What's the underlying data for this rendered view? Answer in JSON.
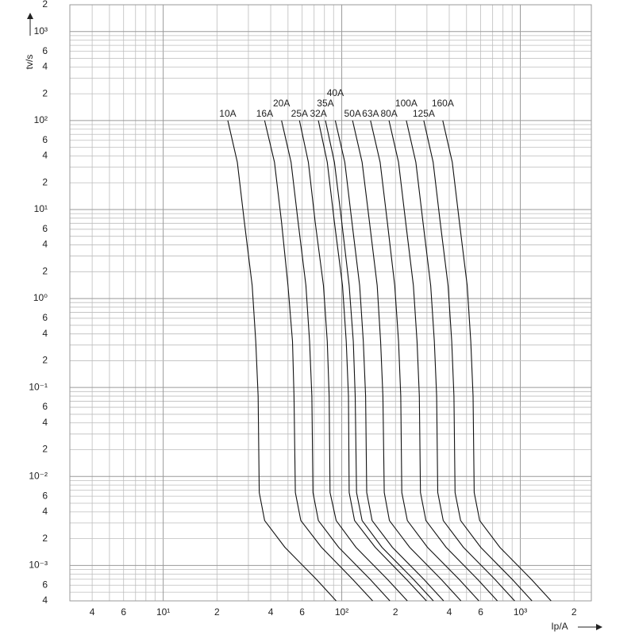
{
  "chart_data": {
    "type": "line",
    "x_label": "Ip/A",
    "y_label": "tv/s",
    "xlog": true,
    "ylog": true,
    "grid": true,
    "xlim": [
      3,
      2500
    ],
    "ylim": [
      0.0004,
      2000
    ],
    "xticks": [
      4,
      6,
      {
        "value": 10,
        "label": "10¹"
      },
      {
        "value": 20,
        "label": "2"
      },
      {
        "value": 40,
        "label": "4"
      },
      {
        "value": 60,
        "label": "6"
      },
      {
        "value": 100,
        "label": "10²"
      },
      {
        "value": 200,
        "label": "2"
      },
      {
        "value": 400,
        "label": "4"
      },
      {
        "value": 600,
        "label": "6"
      },
      {
        "value": 1000,
        "label": "10³"
      },
      {
        "value": 2000,
        "label": "2"
      }
    ],
    "yticks": [
      {
        "value": 2000,
        "label": "2"
      },
      {
        "value": 1000,
        "label": "10³"
      },
      {
        "value": 600,
        "label": "6"
      },
      {
        "value": 400,
        "label": "4"
      },
      {
        "value": 200,
        "label": "2"
      },
      {
        "value": 100,
        "label": "10²"
      },
      {
        "value": 60,
        "label": "6"
      },
      {
        "value": 40,
        "label": "4"
      },
      {
        "value": 20,
        "label": "2"
      },
      {
        "value": 10,
        "label": "10¹"
      },
      6,
      4,
      2,
      {
        "value": 1,
        "label": "10⁰"
      },
      {
        "value": 0.6,
        "label": "6"
      },
      {
        "value": 0.4,
        "label": "4"
      },
      {
        "value": 0.2,
        "label": "2"
      },
      {
        "value": 0.1,
        "label": "10⁻¹"
      },
      {
        "value": 0.06,
        "label": "6"
      },
      {
        "value": 0.04,
        "label": "4"
      },
      {
        "value": 0.02,
        "label": "2"
      },
      {
        "value": 0.01,
        "label": "10⁻²"
      },
      {
        "value": 0.006,
        "label": "6"
      },
      {
        "value": 0.004,
        "label": "4"
      },
      {
        "value": 0.002,
        "label": "2"
      },
      {
        "value": 0.001,
        "label": "10⁻³"
      },
      {
        "value": 0.0006,
        "label": "6"
      },
      {
        "value": 0.0004,
        "label": "4"
      }
    ],
    "x_minor_grid": [
      3,
      5,
      7,
      8,
      9,
      30,
      50,
      70,
      80,
      90,
      300,
      500,
      700,
      800,
      900
    ],
    "y_minor_grid": [
      0.0005,
      0.0007,
      0.0008,
      0.0009,
      0.003,
      0.005,
      0.007,
      0.008,
      0.009,
      0.03,
      0.05,
      0.07,
      0.08,
      0.09,
      0.3,
      0.5,
      0.7,
      0.8,
      0.9,
      3,
      5,
      7,
      8,
      9,
      30,
      50,
      70,
      80,
      90,
      300,
      500,
      700,
      800,
      900
    ],
    "series": [
      {
        "name": "10A",
        "color": "#111",
        "x": [
          23,
          26,
          28.5,
          31.5,
          33,
          34,
          34.5,
          37,
          48,
          72,
          93
        ],
        "values": [
          100,
          34,
          7.2,
          1.4,
          0.33,
          0.08,
          0.0066,
          0.0032,
          0.0016,
          0.0007,
          0.0004
        ]
      },
      {
        "name": "16A",
        "color": "#111",
        "x": [
          37,
          42,
          46,
          50,
          53,
          54,
          55,
          59,
          77,
          115,
          149
        ],
        "values": [
          100,
          34,
          7.2,
          1.4,
          0.33,
          0.08,
          0.0066,
          0.0032,
          0.0016,
          0.0007,
          0.0004
        ]
      },
      {
        "name": "20A",
        "color": "#111",
        "x": [
          46,
          52,
          57,
          63,
          66,
          68,
          69,
          74,
          96,
          144,
          186
        ],
        "values": [
          100,
          34,
          7.2,
          1.4,
          0.33,
          0.08,
          0.0066,
          0.0032,
          0.0016,
          0.0007,
          0.0004
        ]
      },
      {
        "name": "25A",
        "color": "#111",
        "x": [
          58,
          65,
          71,
          79,
          83,
          85,
          86,
          93,
          120,
          180,
          233
        ],
        "values": [
          100,
          34,
          7.2,
          1.4,
          0.33,
          0.08,
          0.0066,
          0.0032,
          0.0016,
          0.0007,
          0.0004
        ]
      },
      {
        "name": "32A",
        "color": "#111",
        "x": [
          74,
          83,
          91,
          101,
          106,
          109,
          110,
          118,
          154,
          230,
          298
        ],
        "values": [
          100,
          34,
          7.2,
          1.4,
          0.33,
          0.08,
          0.0066,
          0.0032,
          0.0016,
          0.0007,
          0.0004
        ]
      },
      {
        "name": "35A",
        "color": "#111",
        "x": [
          81,
          91,
          100,
          110,
          116,
          119,
          121,
          130,
          168,
          252,
          326
        ],
        "values": [
          100,
          34,
          7.2,
          1.4,
          0.33,
          0.08,
          0.0066,
          0.0032,
          0.0016,
          0.0007,
          0.0004
        ]
      },
      {
        "name": "40A",
        "color": "#111",
        "x": [
          92,
          104,
          114,
          126,
          132,
          136,
          138,
          148,
          192,
          288,
          372
        ],
        "values": [
          100,
          34,
          7.2,
          1.4,
          0.33,
          0.08,
          0.0066,
          0.0032,
          0.0016,
          0.0007,
          0.0004
        ]
      },
      {
        "name": "50A",
        "color": "#111",
        "x": [
          115,
          130,
          143,
          158,
          165,
          170,
          173,
          185,
          240,
          360,
          465
        ],
        "values": [
          100,
          34,
          7.2,
          1.4,
          0.33,
          0.08,
          0.0066,
          0.0032,
          0.0016,
          0.0007,
          0.0004
        ]
      },
      {
        "name": "63A",
        "color": "#111",
        "x": [
          145,
          164,
          180,
          198,
          208,
          214,
          217,
          233,
          302,
          454,
          586
        ],
        "values": [
          100,
          34,
          7.2,
          1.4,
          0.33,
          0.08,
          0.0066,
          0.0032,
          0.0016,
          0.0007,
          0.0004
        ]
      },
      {
        "name": "80A",
        "color": "#111",
        "x": [
          184,
          208,
          228,
          252,
          264,
          272,
          276,
          296,
          384,
          576,
          744
        ],
        "values": [
          100,
          34,
          7.2,
          1.4,
          0.33,
          0.08,
          0.0066,
          0.0032,
          0.0016,
          0.0007,
          0.0004
        ]
      },
      {
        "name": "100A",
        "color": "#111",
        "x": [
          230,
          260,
          285,
          315,
          330,
          340,
          345,
          370,
          480,
          720,
          930
        ],
        "values": [
          100,
          34,
          7.2,
          1.4,
          0.33,
          0.08,
          0.0066,
          0.0032,
          0.0016,
          0.0007,
          0.0004
        ]
      },
      {
        "name": "125A",
        "color": "#111",
        "x": [
          288,
          325,
          356,
          394,
          413,
          425,
          431,
          463,
          600,
          900,
          1163
        ],
        "values": [
          100,
          34,
          7.2,
          1.4,
          0.33,
          0.08,
          0.0066,
          0.0032,
          0.0016,
          0.0007,
          0.0004
        ]
      },
      {
        "name": "160A",
        "color": "#111",
        "x": [
          368,
          416,
          456,
          504,
          528,
          544,
          552,
          592,
          768,
          1152,
          1488
        ],
        "values": [
          100,
          34,
          7.2,
          1.4,
          0.33,
          0.08,
          0.0066,
          0.0032,
          0.0016,
          0.0007,
          0.0004
        ]
      }
    ]
  }
}
